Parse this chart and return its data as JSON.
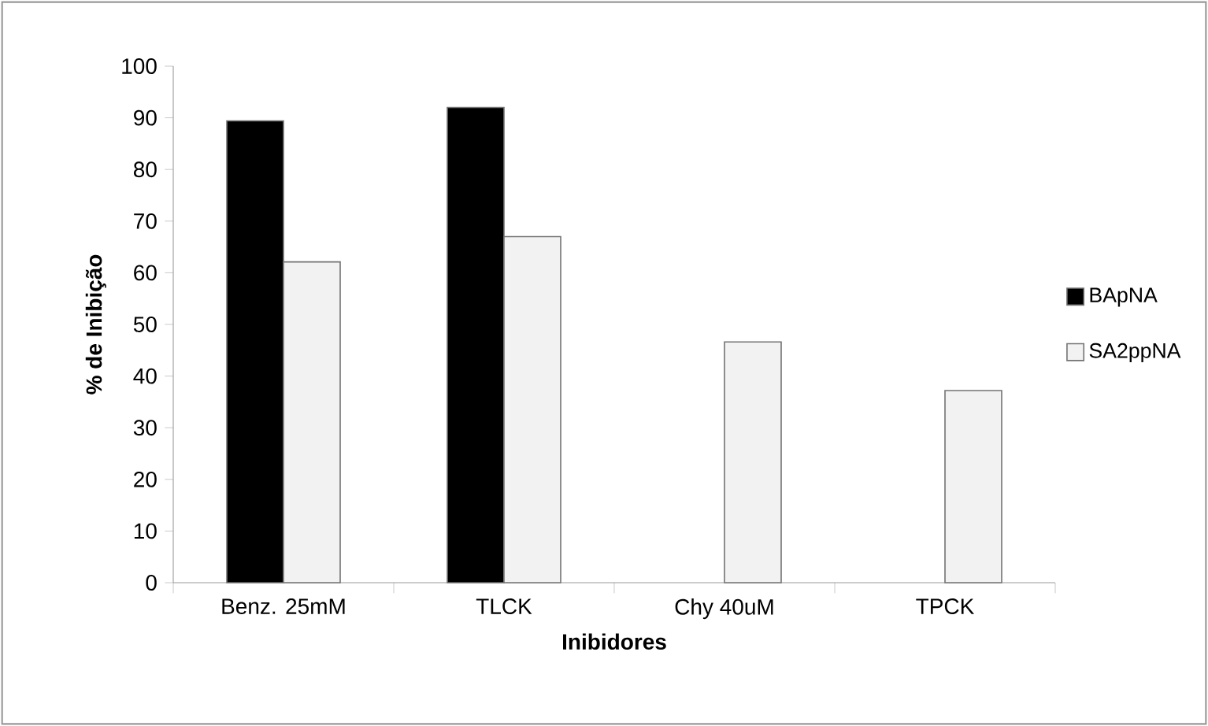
{
  "chart_data": {
    "type": "bar",
    "xlabel": "Inibidores",
    "ylabel": "% de Inibição",
    "categories": [
      "Benz. 25mM",
      "TLCK",
      "Chy 40uM",
      "TPCK"
    ],
    "series": [
      {
        "name": "BApNA",
        "color": "#000000",
        "values": [
          89.4,
          92.0,
          null,
          null
        ]
      },
      {
        "name": "SA2ppNA",
        "color": "#f2f2f2",
        "values": [
          62.1,
          67.0,
          46.6,
          37.2
        ]
      }
    ],
    "ylim": [
      0,
      100
    ],
    "yticks": [
      0,
      10,
      20,
      30,
      40,
      50,
      60,
      70,
      80,
      90,
      100
    ],
    "grid": false,
    "legend": "right"
  }
}
